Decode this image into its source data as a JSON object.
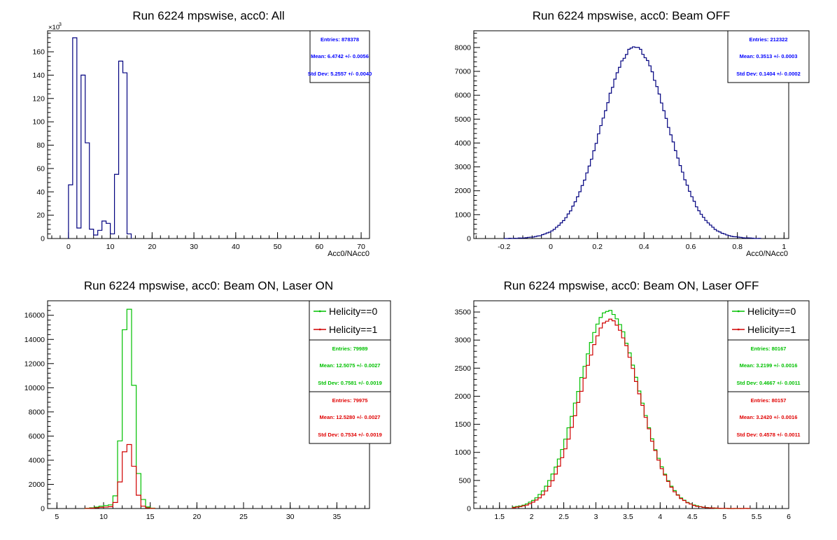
{
  "chart_data": [
    {
      "type": "histogram",
      "title": "Run 6224 mpswise, acc0: All",
      "xlabel": "Acc0/NAcc0",
      "ylabel": "",
      "xlim": [
        -5,
        72
      ],
      "ylim": [
        0,
        178
      ],
      "y_exponent_label": "×10",
      "y_exponent_power": "3",
      "xticks": [
        0,
        10,
        20,
        30,
        40,
        50,
        60,
        70
      ],
      "yticks": [
        0,
        20,
        40,
        60,
        80,
        100,
        120,
        140,
        160
      ],
      "colors": {
        "line": "#00007f",
        "stats": "#0000ff"
      },
      "bins": {
        "edges": [
          0,
          1,
          2,
          3,
          4,
          5,
          6,
          7,
          8,
          9,
          10,
          11,
          12,
          13,
          14,
          15
        ],
        "values": [
          46,
          172,
          9,
          140,
          82,
          8,
          3,
          7,
          15,
          13,
          4,
          55,
          152,
          142,
          4
        ]
      },
      "stats": [
        {
          "entries": "Entries: 878378",
          "mean": "Mean: 6.4742 +/- 0.0056",
          "std": "Std Dev: 5.2557 +/- 0.0040",
          "color": "#0000ff"
        }
      ],
      "legend": []
    },
    {
      "type": "histogram",
      "title": "Run 6224 mpswise, acc0: Beam OFF",
      "xlabel": "Acc0/NAcc0",
      "ylabel": "",
      "xlim": [
        -0.33,
        1.02
      ],
      "ylim": [
        0,
        8700
      ],
      "xticks": [
        -0.2,
        0,
        0.2,
        0.4,
        0.6,
        0.8,
        1
      ],
      "yticks": [
        0,
        1000,
        2000,
        3000,
        4000,
        5000,
        6000,
        7000,
        8000
      ],
      "colors": {
        "line": "#00007f",
        "stats": "#0000ff"
      },
      "gauss": {
        "mean": 0.36,
        "sigma": 0.1404,
        "amp": 8000,
        "lo": -0.2,
        "hi": 0.9,
        "step": 0.01,
        "seed": 3,
        "noise": 110
      },
      "stats": [
        {
          "entries": "Entries: 212322",
          "mean": "Mean: 0.3513 +/- 0.0003",
          "std": "Std Dev: 0.1404 +/- 0.0002",
          "color": "#0000ff"
        }
      ],
      "legend": []
    },
    {
      "type": "histogram",
      "title": "Run 6224 mpswise, acc0: Beam ON, Laser ON",
      "xlabel": "",
      "ylabel": "",
      "xlim": [
        4,
        38.5
      ],
      "ylim": [
        0,
        17200
      ],
      "xticks": [
        5,
        10,
        15,
        20,
        25,
        30,
        35
      ],
      "yticks": [
        0,
        2000,
        4000,
        6000,
        8000,
        10000,
        12000,
        14000,
        16000
      ],
      "series": [
        {
          "name": "Helicity==0",
          "color": "#00c000",
          "bins": {
            "edges": [
              8,
              8.5,
              9,
              9.5,
              10,
              10.5,
              11,
              11.5,
              12,
              12.5,
              13,
              13.5,
              14,
              14.5,
              15,
              15.5
            ],
            "values": [
              20,
              60,
              120,
              200,
              250,
              300,
              1050,
              5600,
              14800,
              16500,
              10200,
              2900,
              750,
              130,
              30
            ]
          }
        },
        {
          "name": "Helicity==1",
          "color": "#d00000",
          "bins": {
            "edges": [
              8,
              8.5,
              9,
              9.5,
              10,
              10.5,
              11,
              11.5,
              12,
              12.5,
              13,
              13.5,
              14,
              14.5,
              15,
              15.5
            ],
            "values": [
              10,
              30,
              60,
              100,
              120,
              150,
              500,
              2200,
              4700,
              5300,
              3500,
              1100,
              200,
              50,
              10
            ]
          }
        }
      ],
      "stats": [
        {
          "entries": "Entries: 79989",
          "mean": "Mean: 12.5075 +/- 0.0027",
          "std": "Std Dev: 0.7581 +/- 0.0019",
          "color": "#00c000"
        },
        {
          "entries": "Entries: 79975",
          "mean": "Mean: 12.5280 +/- 0.0027",
          "std": "Std Dev: 0.7534 +/- 0.0019",
          "color": "#e00000"
        }
      ],
      "legend": [
        "Helicity==0",
        "Helicity==1"
      ]
    },
    {
      "type": "histogram",
      "title": "Run 6224 mpswise, acc0: Beam ON, Laser OFF",
      "xlabel": "",
      "ylabel": "",
      "xlim": [
        1.1,
        6.0
      ],
      "ylim": [
        0,
        3700
      ],
      "xticks": [
        1.5,
        2,
        2.5,
        3,
        3.5,
        4,
        4.5,
        5,
        5.5,
        6
      ],
      "yticks": [
        0,
        500,
        1000,
        1500,
        2000,
        2500,
        3000,
        3500
      ],
      "series": [
        {
          "name": "Helicity==0",
          "color": "#00c000",
          "gauss": {
            "mean": 3.2,
            "sigma": 0.4667,
            "amp": 3520,
            "lo": 1.7,
            "hi": 5.4,
            "step": 0.05,
            "seed": 11,
            "noise": 40
          }
        },
        {
          "name": "Helicity==1",
          "color": "#d00000",
          "gauss": {
            "mean": 3.22,
            "sigma": 0.4578,
            "amp": 3370,
            "lo": 1.7,
            "hi": 5.4,
            "step": 0.05,
            "seed": 29,
            "noise": 40
          }
        }
      ],
      "stats": [
        {
          "entries": "Entries: 80167",
          "mean": "Mean: 3.2199 +/- 0.0016",
          "std": "Std Dev: 0.4667 +/- 0.0011",
          "color": "#00c000"
        },
        {
          "entries": "Entries: 80157",
          "mean": "Mean: 3.2420 +/- 0.0016",
          "std": "Std Dev: 0.4578 +/- 0.0011",
          "color": "#e00000"
        }
      ],
      "legend": [
        "Helicity==0",
        "Helicity==1"
      ]
    }
  ]
}
